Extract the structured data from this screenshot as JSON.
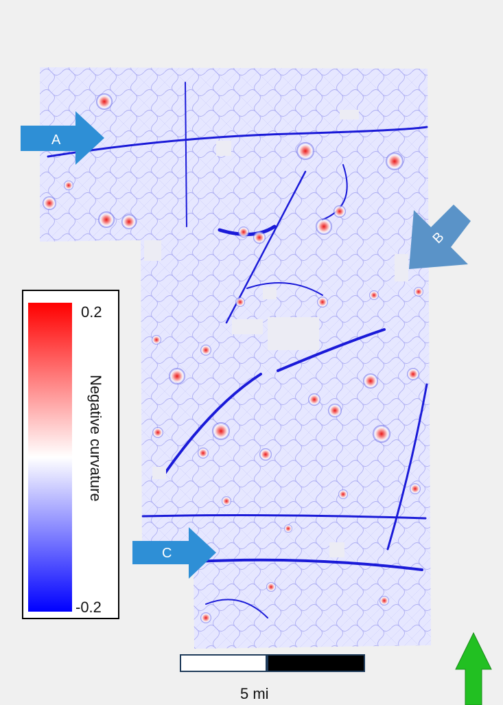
{
  "legend": {
    "title": "Negative curvature",
    "max_label": "0.2",
    "min_label": "-0.2",
    "colors": {
      "high": "#ff0000",
      "mid": "#ffffff",
      "low": "#0000ff"
    }
  },
  "arrows": {
    "a": {
      "label": "A",
      "color": "#2e8fd6"
    },
    "b": {
      "label": "B",
      "color": "#5a93c8"
    },
    "c": {
      "label": "C",
      "color": "#2e8fd6"
    }
  },
  "north_arrow": {
    "color": "#22c022"
  },
  "scale_bar": {
    "label": "5 mi"
  },
  "map": {
    "base_color": "#e6e7ff",
    "line_color": "#1a1ad8",
    "feature_color": "#e81818"
  }
}
